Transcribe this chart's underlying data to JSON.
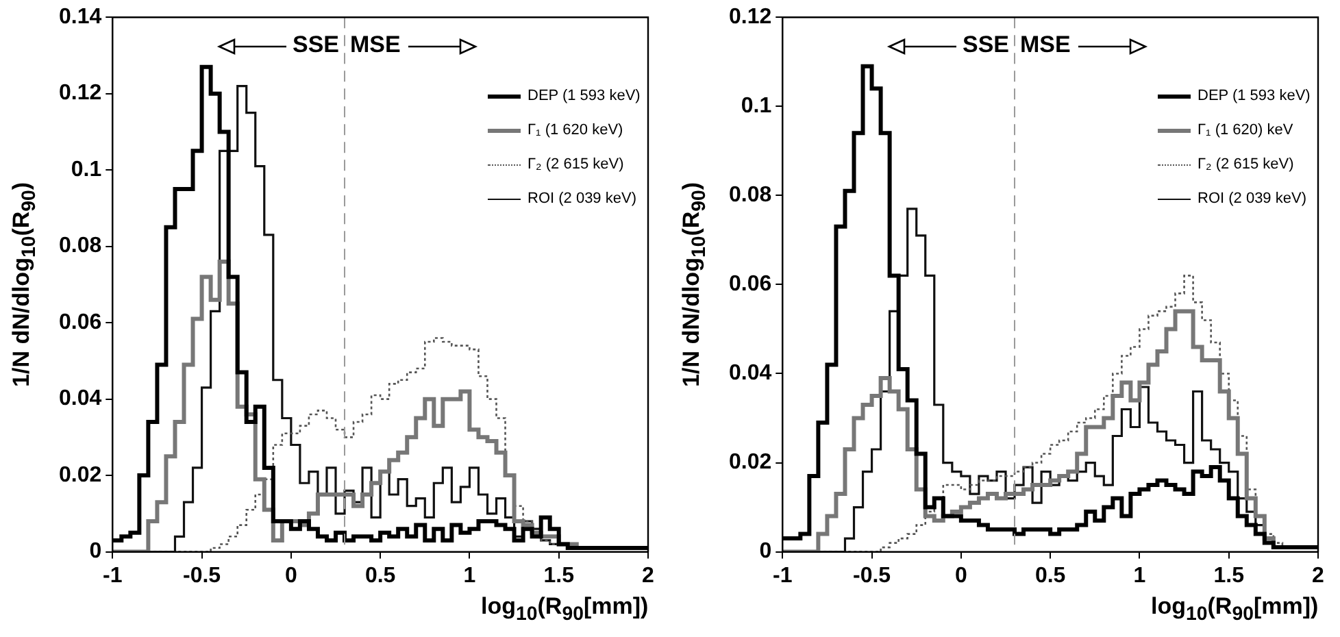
{
  "chart_data": [
    {
      "type": "step",
      "xlabel": "log$_{10}$(R$_{90}$[mm])",
      "ylabel": "1/N dN/dlog$_{10}$(R$_{90}$)",
      "series": [
        {
          "name": "DEP (1 593 keV)",
          "color": "#000000",
          "line_style": "solid",
          "x": [
            -1,
            -0.95,
            -0.9,
            -0.85,
            -0.8,
            -0.75,
            -0.7,
            -0.65,
            -0.55,
            -0.5,
            -0.45,
            -0.4,
            -0.35,
            -0.3,
            -0.25,
            -0.2,
            -0.15,
            -0.1,
            0,
            0.05,
            0.1,
            0.15,
            0.2,
            0.25,
            0.3,
            0.35,
            0.45,
            0.5,
            0.55,
            0.6,
            0.65,
            0.7,
            0.75,
            0.8,
            0.85,
            0.9,
            0.95,
            1,
            1.05,
            1.15,
            1.2,
            1.25,
            1.3,
            1.35,
            1.4,
            1.45,
            1.5,
            1.55,
            2
          ],
          "values": [
            0.003,
            0.004,
            0.005,
            0.02,
            0.034,
            0.049,
            0.085,
            0.095,
            0.105,
            0.127,
            0.12,
            0.11,
            0.072,
            0.047,
            0.034,
            0.038,
            0.022,
            0.008,
            0.006,
            0.008,
            0.006,
            0.004,
            0.003,
            0.005,
            0.003,
            0.004,
            0.003,
            0.005,
            0.004,
            0.006,
            0.004,
            0.007,
            0.003,
            0.006,
            0.003,
            0.007,
            0.005,
            0.006,
            0.008,
            0.007,
            0.006,
            0.003,
            0.006,
            0.004,
            0.009,
            0.006,
            0.002,
            0.001,
            0.001
          ]
        },
        {
          "name": "Γ₁ (1 620 keV)",
          "color": "#777777",
          "line_style": "solid",
          "x": [
            -1,
            -0.8,
            -0.75,
            -0.7,
            -0.65,
            -0.6,
            -0.55,
            -0.5,
            -0.45,
            -0.4,
            -0.35,
            -0.3,
            -0.25,
            -0.2,
            -0.15,
            -0.1,
            -0.05,
            0.05,
            0.1,
            0.15,
            0.35,
            0.4,
            0.45,
            0.5,
            0.55,
            0.6,
            0.65,
            0.7,
            0.75,
            0.8,
            0.85,
            0.95,
            1,
            1.05,
            1.1,
            1.15,
            1.2,
            1.25,
            1.3,
            1.35,
            1.4,
            1.5,
            1.6,
            2
          ],
          "values": [
            0,
            0.008,
            0.013,
            0.025,
            0.034,
            0.049,
            0.061,
            0.072,
            0.066,
            0.076,
            0.065,
            0.038,
            0.036,
            0.019,
            0.011,
            0.003,
            0.008,
            0.007,
            0.01,
            0.015,
            0.012,
            0.015,
            0.018,
            0.021,
            0.024,
            0.026,
            0.03,
            0.035,
            0.04,
            0.033,
            0.04,
            0.042,
            0.032,
            0.03,
            0.029,
            0.026,
            0.02,
            0.008,
            0.007,
            0.005,
            0.004,
            0.002,
            0.001,
            0.001
          ]
        },
        {
          "name": "Γ₂ (2 615 keV)",
          "color": "#555555",
          "line_style": "dotted",
          "x": [
            -1,
            -0.45,
            -0.4,
            -0.35,
            -0.3,
            -0.25,
            -0.2,
            -0.15,
            -0.1,
            -0.05,
            0.05,
            0.1,
            0.15,
            0.2,
            0.25,
            0.3,
            0.35,
            0.4,
            0.45,
            0.5,
            0.55,
            0.6,
            0.65,
            0.7,
            0.75,
            0.8,
            0.85,
            0.9,
            1,
            1.05,
            1.1,
            1.15,
            1.2,
            1.25,
            1.3,
            1.35,
            1.4,
            1.45,
            1.55,
            2
          ],
          "values": [
            0,
            0.001,
            0.002,
            0.004,
            0.007,
            0.011,
            0.015,
            0.019,
            0.028,
            0.031,
            0.033,
            0.036,
            0.037,
            0.035,
            0.032,
            0.03,
            0.034,
            0.036,
            0.041,
            0.04,
            0.044,
            0.045,
            0.047,
            0.048,
            0.055,
            0.056,
            0.055,
            0.054,
            0.053,
            0.046,
            0.04,
            0.035,
            0.02,
            0.012,
            0.008,
            0.004,
            0.003,
            0.002,
            0.001,
            0.001
          ]
        },
        {
          "name": "ROI (2 039 keV)",
          "color": "#111111",
          "line_style": "solid",
          "x": [
            -1,
            -0.65,
            -0.6,
            -0.55,
            -0.5,
            -0.45,
            -0.4,
            -0.3,
            -0.25,
            -0.2,
            -0.15,
            -0.1,
            -0.05,
            0,
            0.05,
            0.1,
            0.15,
            0.2,
            0.25,
            0.3,
            0.35,
            0.4,
            0.45,
            0.5,
            0.55,
            0.6,
            0.65,
            0.7,
            0.75,
            0.8,
            0.85,
            0.9,
            0.95,
            1,
            1.05,
            1.1,
            1.15,
            1.2,
            1.25,
            1.3,
            1.35,
            1.4,
            1.45,
            1.55,
            2
          ],
          "values": [
            0,
            0.004,
            0.013,
            0.022,
            0.043,
            0.063,
            0.105,
            0.122,
            0.115,
            0.101,
            0.083,
            0.045,
            0.035,
            0.028,
            0.018,
            0.021,
            0.015,
            0.022,
            0.01,
            0.016,
            0.013,
            0.022,
            0.009,
            0.021,
            0.015,
            0.019,
            0.012,
            0.014,
            0.009,
            0.018,
            0.022,
            0.013,
            0.017,
            0.022,
            0.015,
            0.01,
            0.014,
            0.009,
            0.004,
            0.008,
            0.006,
            0.003,
            0.002,
            0.001,
            0.001
          ]
        }
      ],
      "xlim": [
        -1,
        2
      ],
      "xticks": [
        -1,
        -0.5,
        0,
        0.5,
        1,
        1.5,
        2
      ],
      "ylim": [
        0,
        0.14
      ],
      "yticks": [
        0,
        0.02,
        0.04,
        0.06,
        0.08,
        0.1,
        0.12,
        0.14
      ],
      "ref_lines": [
        {
          "axis": "x",
          "value": 0.3,
          "color": "#999999",
          "line_style": "dashed"
        }
      ],
      "annotations": [
        "SSE",
        "MSE"
      ],
      "legend": "top right"
    },
    {
      "type": "step",
      "xlabel": "log$_{10}$(R$_{90}$[mm])",
      "ylabel": "1/N dN/dlog$_{10}$(R$_{90}$)",
      "series": [
        {
          "name": "DEP (1 593 keV)",
          "color": "#000000",
          "line_style": "solid",
          "x": [
            -1,
            -0.9,
            -0.85,
            -0.8,
            -0.75,
            -0.7,
            -0.65,
            -0.6,
            -0.55,
            -0.5,
            -0.45,
            -0.4,
            -0.35,
            -0.3,
            -0.25,
            -0.2,
            -0.15,
            -0.1,
            0,
            0.1,
            0.15,
            0.3,
            0.35,
            0.5,
            0.55,
            0.65,
            0.7,
            0.75,
            0.8,
            0.85,
            0.9,
            0.95,
            1,
            1.05,
            1.1,
            1.15,
            1.2,
            1.25,
            1.3,
            1.35,
            1.4,
            1.45,
            1.5,
            1.55,
            1.6,
            1.65,
            1.7,
            1.75,
            2
          ],
          "values": [
            0.003,
            0.004,
            0.017,
            0.029,
            0.042,
            0.073,
            0.081,
            0.094,
            0.109,
            0.104,
            0.094,
            0.062,
            0.041,
            0.034,
            0.022,
            0.01,
            0.012,
            0.008,
            0.007,
            0.006,
            0.005,
            0.004,
            0.005,
            0.004,
            0.005,
            0.006,
            0.009,
            0.007,
            0.01,
            0.012,
            0.008,
            0.013,
            0.014,
            0.015,
            0.016,
            0.015,
            0.014,
            0.013,
            0.018,
            0.017,
            0.019,
            0.016,
            0.012,
            0.008,
            0.006,
            0.004,
            0.002,
            0.001,
            0.001
          ]
        },
        {
          "name": "Γ₁ (1 620) keV",
          "color": "#777777",
          "line_style": "solid",
          "x": [
            -1,
            -0.8,
            -0.75,
            -0.7,
            -0.65,
            -0.6,
            -0.55,
            -0.5,
            -0.45,
            -0.4,
            -0.35,
            -0.3,
            -0.25,
            -0.2,
            -0.15,
            -0.1,
            -0.05,
            0,
            0.05,
            0.1,
            0.15,
            0.2,
            0.25,
            0.35,
            0.4,
            0.5,
            0.55,
            0.6,
            0.65,
            0.7,
            0.8,
            0.85,
            0.9,
            0.95,
            1,
            1.05,
            1.1,
            1.15,
            1.2,
            1.3,
            1.35,
            1.45,
            1.5,
            1.55,
            1.6,
            1.65,
            1.7,
            1.75,
            2
          ],
          "values": [
            0,
            0.004,
            0.008,
            0.013,
            0.023,
            0.03,
            0.033,
            0.035,
            0.039,
            0.036,
            0.032,
            0.023,
            0.014,
            0.008,
            0.007,
            0.008,
            0.009,
            0.01,
            0.011,
            0.012,
            0.013,
            0.012,
            0.013,
            0.014,
            0.015,
            0.016,
            0.017,
            0.018,
            0.022,
            0.028,
            0.03,
            0.035,
            0.038,
            0.034,
            0.038,
            0.042,
            0.045,
            0.05,
            0.054,
            0.046,
            0.043,
            0.036,
            0.03,
            0.022,
            0.012,
            0.008,
            0.003,
            0.001,
            0.001
          ]
        },
        {
          "name": "Γ₂ (2 615 keV)",
          "color": "#555555",
          "line_style": "dotted",
          "x": [
            -1,
            -0.45,
            -0.4,
            -0.35,
            -0.3,
            -0.25,
            -0.2,
            -0.15,
            -0.1,
            0,
            0.05,
            0.1,
            0.2,
            0.3,
            0.35,
            0.4,
            0.45,
            0.5,
            0.55,
            0.6,
            0.65,
            0.7,
            0.75,
            0.8,
            0.85,
            0.9,
            0.95,
            1,
            1.05,
            1.1,
            1.15,
            1.2,
            1.25,
            1.3,
            1.35,
            1.4,
            1.45,
            1.5,
            1.55,
            1.6,
            1.65,
            1.7,
            1.75,
            1.8,
            2
          ],
          "values": [
            0,
            0.001,
            0.002,
            0.003,
            0.004,
            0.006,
            0.009,
            0.012,
            0.015,
            0.014,
            0.015,
            0.016,
            0.017,
            0.018,
            0.019,
            0.02,
            0.022,
            0.024,
            0.025,
            0.027,
            0.029,
            0.03,
            0.032,
            0.035,
            0.04,
            0.044,
            0.046,
            0.05,
            0.053,
            0.054,
            0.055,
            0.058,
            0.062,
            0.056,
            0.052,
            0.047,
            0.04,
            0.034,
            0.026,
            0.014,
            0.008,
            0.004,
            0.002,
            0.001,
            0.001
          ]
        },
        {
          "name": "ROI (2 039 keV)",
          "color": "#111111",
          "line_style": "solid",
          "x": [
            -1,
            -0.65,
            -0.6,
            -0.55,
            -0.5,
            -0.45,
            -0.4,
            -0.35,
            -0.3,
            -0.25,
            -0.2,
            -0.15,
            -0.1,
            -0.05,
            0,
            0.05,
            0.1,
            0.15,
            0.2,
            0.25,
            0.3,
            0.35,
            0.4,
            0.45,
            0.5,
            0.55,
            0.6,
            0.65,
            0.7,
            0.75,
            0.8,
            0.85,
            0.9,
            0.95,
            1,
            1.05,
            1.1,
            1.15,
            1.2,
            1.25,
            1.3,
            1.35,
            1.4,
            1.45,
            1.5,
            1.55,
            1.6,
            1.65,
            1.7,
            1.75,
            2
          ],
          "values": [
            0,
            0.003,
            0.01,
            0.018,
            0.023,
            0.036,
            0.054,
            0.062,
            0.077,
            0.071,
            0.062,
            0.033,
            0.02,
            0.018,
            0.017,
            0.013,
            0.017,
            0.016,
            0.018,
            0.012,
            0.015,
            0.019,
            0.011,
            0.018,
            0.015,
            0.017,
            0.016,
            0.018,
            0.02,
            0.017,
            0.015,
            0.026,
            0.032,
            0.028,
            0.037,
            0.029,
            0.027,
            0.025,
            0.024,
            0.02,
            0.036,
            0.025,
            0.023,
            0.02,
            0.018,
            0.012,
            0.009,
            0.006,
            0.003,
            0.001,
            0.001
          ]
        }
      ],
      "xlim": [
        -1,
        2
      ],
      "xticks": [
        -1,
        -0.5,
        0,
        0.5,
        1,
        1.5,
        2
      ],
      "ylim": [
        0,
        0.12
      ],
      "yticks": [
        0,
        0.02,
        0.04,
        0.06,
        0.08,
        0.1,
        0.12
      ],
      "ref_lines": [
        {
          "axis": "x",
          "value": 0.3,
          "color": "#999999",
          "line_style": "dashed"
        }
      ],
      "annotations": [
        "SSE",
        "MSE"
      ],
      "legend": "top right"
    }
  ]
}
